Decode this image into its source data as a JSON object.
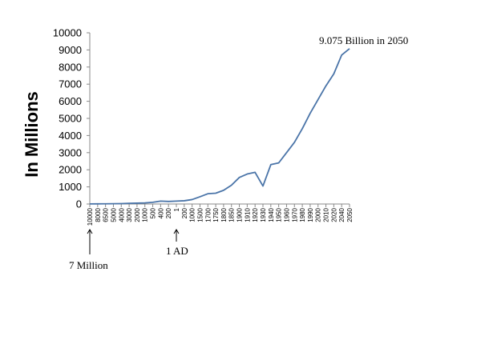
{
  "chart_data": {
    "type": "line",
    "title": "",
    "xlabel": "",
    "ylabel": "In Millions",
    "ylim": [
      0,
      10000
    ],
    "yticks": [
      0,
      1000,
      2000,
      3000,
      4000,
      5000,
      6000,
      7000,
      8000,
      9000,
      10000
    ],
    "grid": false,
    "legend": "none",
    "line_color": "#4a74a8",
    "categories": [
      "10000",
      "8000",
      "6500",
      "5000",
      "4000",
      "3000",
      "2000",
      "1000",
      "500",
      "400",
      "200",
      "1",
      "200",
      "1000",
      "1500",
      "1700",
      "1750",
      "1800",
      "1850",
      "1900",
      "1910",
      "1920",
      "1930",
      "1940",
      "1950",
      "1960",
      "1970",
      "1980",
      "1990",
      "2000",
      "2010",
      "2020",
      "2040",
      "2050"
    ],
    "values": [
      7,
      10,
      12,
      18,
      25,
      40,
      50,
      65,
      100,
      170,
      150,
      170,
      190,
      260,
      425,
      600,
      630,
      800,
      1100,
      1550,
      1750,
      1850,
      1050,
      2300,
      2400,
      3000,
      3600,
      4400,
      5300,
      6100,
      6900,
      7600,
      8700,
      9075
    ],
    "annotations": {
      "top": "9.075 Billion in 2050",
      "ad": "1 AD",
      "start": "7 Million"
    }
  }
}
